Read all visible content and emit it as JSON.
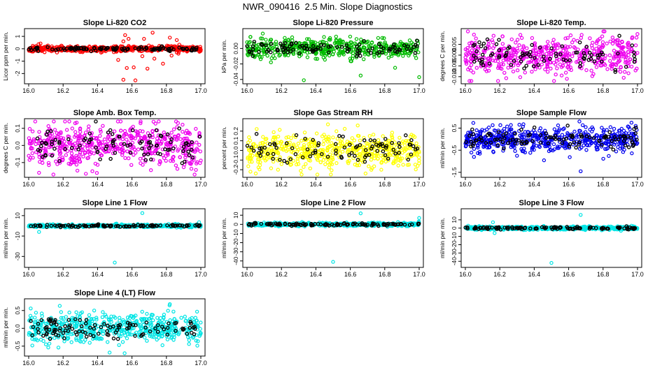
{
  "page_title": "NWR_090416  2.5 Min. Slope Diagnostics",
  "chart_data": [
    {
      "type": "scatter",
      "title": "Slope Li-820 CO2",
      "ylabel": "Licor ppm per min.",
      "xlim": [
        16.0,
        17.0
      ],
      "xticks": [
        "16.0",
        "16.2",
        "16.4",
        "16.6",
        "16.8",
        "17.0"
      ],
      "ylim": [
        -2.6,
        1.4
      ],
      "yticks": [
        -2,
        -1,
        0,
        1
      ],
      "ytick_labels": [
        "-2",
        "-1",
        "0",
        "1"
      ],
      "color": "#ff0000",
      "seed": 11,
      "n_primary": 520,
      "n_black": 110,
      "spread": 0.12,
      "outliers": [
        [
          16.55,
          -2.5
        ],
        [
          16.62,
          -2.55
        ],
        [
          16.57,
          -1.55
        ],
        [
          16.61,
          -1.5
        ],
        [
          16.69,
          -1.6
        ],
        [
          16.78,
          -1.2
        ],
        [
          16.73,
          -0.8
        ],
        [
          16.83,
          -0.55
        ],
        [
          16.87,
          -0.4
        ],
        [
          16.66,
          -0.6
        ],
        [
          16.52,
          -0.9
        ],
        [
          16.56,
          1.1
        ],
        [
          16.58,
          0.8
        ],
        [
          16.55,
          0.6
        ],
        [
          16.67,
          0.8
        ],
        [
          16.72,
          1.3
        ],
        [
          16.82,
          0.9
        ],
        [
          16.86,
          0.7
        ],
        [
          16.86,
          -0.3
        ]
      ]
    },
    {
      "type": "scatter",
      "title": "Slope Li-820 Pressure",
      "ylabel": "kPa per min.",
      "xlim": [
        16.0,
        17.0
      ],
      "xticks": [
        "16.0",
        "16.2",
        "16.4",
        "16.6",
        "16.8",
        "17.0"
      ],
      "ylim": [
        -0.042,
        0.022
      ],
      "yticks": [
        -0.04,
        -0.02,
        0.0
      ],
      "ytick_labels": [
        "-0.04",
        "-0.02",
        "0.00"
      ],
      "color": "#00bb00",
      "seed": 22,
      "n_primary": 480,
      "n_black": 100,
      "spread": 0.006,
      "outliers": [
        [
          16.33,
          -0.041
        ],
        [
          16.66,
          -0.035
        ],
        [
          17.0,
          -0.037
        ],
        [
          16.86,
          -0.025
        ],
        [
          16.02,
          0.015
        ],
        [
          16.08,
          0.013
        ]
      ]
    },
    {
      "type": "scatter",
      "title": "Slope Li-820 Temp.",
      "ylabel": "degrees C per min.",
      "xlim": [
        16.0,
        17.0
      ],
      "xticks": [
        "16.0",
        "16.2",
        "16.4",
        "16.6",
        "16.8",
        "17.0"
      ],
      "ylim": [
        -0.012,
        0.011
      ],
      "yticks": [
        -0.01,
        -0.005,
        0.0,
        0.005
      ],
      "ytick_labels": [
        "-0.010",
        "-0.005",
        "0.000",
        "0.005"
      ],
      "color": "#ee00ee",
      "seed": 33,
      "n_primary": 520,
      "n_black": 90,
      "spread": 0.0042,
      "outliers": [
        [
          16.05,
          0.0095
        ],
        [
          16.59,
          -0.011
        ],
        [
          16.92,
          -0.0105
        ]
      ]
    },
    {
      "type": "scatter",
      "title": "Slope Amb. Box Temp.",
      "ylabel": "degrees C per min.",
      "xlim": [
        16.0,
        17.0
      ],
      "xticks": [
        "16.0",
        "16.2",
        "16.4",
        "16.6",
        "16.8",
        "17.0"
      ],
      "ylim": [
        -0.17,
        0.14
      ],
      "yticks": [
        -0.1,
        0.0,
        0.1
      ],
      "ytick_labels": [
        "-0.1",
        "0.0",
        "0.1"
      ],
      "color": "#ee00ee",
      "seed": 44,
      "n_primary": 540,
      "n_black": 95,
      "spread": 0.065,
      "outliers": [
        [
          16.27,
          0.13
        ],
        [
          16.06,
          -0.16
        ]
      ]
    },
    {
      "type": "scatter",
      "title": "Slope Gas Stream RH",
      "ylabel": "percent per min.",
      "xlim": [
        16.0,
        17.0
      ],
      "xticks": [
        "16.0",
        "16.2",
        "16.4",
        "16.6",
        "16.8",
        "17.0"
      ],
      "ylim": [
        -0.25,
        0.3
      ],
      "yticks": [
        -0.2,
        -0.1,
        0.0,
        0.1,
        0.2
      ],
      "ytick_labels": [
        "-0.2",
        "-0.1",
        "0.0",
        "0.1",
        "0.2"
      ],
      "color": "#ffff00",
      "seed": 55,
      "n_primary": 540,
      "n_black": 90,
      "spread": 0.09,
      "outliers": [
        [
          16.47,
          0.27
        ],
        [
          16.02,
          -0.22
        ],
        [
          16.18,
          -0.2
        ],
        [
          16.78,
          -0.2
        ]
      ]
    },
    {
      "type": "scatter",
      "title": "Slope Sample Flow",
      "ylabel": "ml/min per min.",
      "xlim": [
        16.0,
        17.0
      ],
      "xticks": [
        "16.0",
        "16.2",
        "16.4",
        "16.6",
        "16.8",
        "17.0"
      ],
      "ylim": [
        -1.6,
        0.8
      ],
      "yticks": [
        -1.5,
        -0.5,
        0.5
      ],
      "ytick_labels": [
        "-1.5",
        "-0.5",
        "0.5"
      ],
      "color": "#0000ee",
      "seed": 66,
      "n_primary": 540,
      "n_black": 110,
      "spread": 0.28,
      "outliers": [
        [
          16.67,
          -1.45
        ],
        [
          16.05,
          -0.8
        ],
        [
          16.3,
          -0.75
        ]
      ]
    },
    {
      "type": "scatter",
      "title": "Slope Line 1 Flow",
      "ylabel": "ml/min per min.",
      "xlim": [
        16.0,
        17.0
      ],
      "xticks": [
        "16.0",
        "16.2",
        "16.4",
        "16.6",
        "16.8",
        "17.0"
      ],
      "ylim": [
        -38,
        14
      ],
      "yticks": [
        -30,
        -10,
        10
      ],
      "ytick_labels": [
        "-30",
        "-10",
        "10"
      ],
      "color": "#00e5e5",
      "seed": 77,
      "n_primary": 520,
      "n_black": 110,
      "spread": 0.7,
      "outliers": [
        [
          16.5,
          -36
        ],
        [
          16.66,
          12.5
        ],
        [
          16.06,
          -6
        ],
        [
          16.99,
          3.5
        ]
      ]
    },
    {
      "type": "scatter",
      "title": "Slope Line 2 Flow",
      "ylabel": "ml/min per min.",
      "xlim": [
        16.0,
        17.0
      ],
      "xticks": [
        "16.0",
        "16.2",
        "16.4",
        "16.6",
        "16.8",
        "17.0"
      ],
      "ylim": [
        -44,
        14
      ],
      "yticks": [
        -40,
        -30,
        -20,
        -10,
        0,
        10
      ],
      "ytick_labels": [
        "-40",
        "-30",
        "-20",
        "-10",
        "0",
        "10"
      ],
      "color": "#00e5e5",
      "seed": 88,
      "n_primary": 520,
      "n_black": 110,
      "spread": 0.9,
      "outliers": [
        [
          16.5,
          -41
        ],
        [
          16.66,
          12
        ],
        [
          17.0,
          7
        ]
      ]
    },
    {
      "type": "scatter",
      "title": "Slope Line 3 Flow",
      "ylabel": "ml/min per min.",
      "xlim": [
        16.0,
        17.0
      ],
      "xticks": [
        "16.0",
        "16.2",
        "16.4",
        "16.6",
        "16.8",
        "17.0"
      ],
      "ylim": [
        -44,
        20
      ],
      "yticks": [
        -40,
        -30,
        -20,
        -10,
        0,
        10
      ],
      "ytick_labels": [
        "-40",
        "-30",
        "-20",
        "-10",
        "0",
        "10"
      ],
      "color": "#00e5e5",
      "seed": 99,
      "n_primary": 520,
      "n_black": 110,
      "spread": 1.0,
      "outliers": [
        [
          16.5,
          -42
        ],
        [
          16.67,
          16
        ],
        [
          16.17,
          -6
        ],
        [
          16.16,
          7
        ]
      ]
    },
    {
      "type": "scatter",
      "title": "Slope Line 4 (LT) Flow",
      "ylabel": "ml/min per min.",
      "xlim": [
        16.0,
        17.0
      ],
      "xticks": [
        "16.0",
        "16.2",
        "16.4",
        "16.6",
        "16.8",
        "17.0"
      ],
      "ylim": [
        -0.7,
        0.75
      ],
      "yticks": [
        -0.5,
        0.0,
        0.5
      ],
      "ytick_labels": [
        "-0.5",
        "0.0",
        "0.5"
      ],
      "color": "#00e5e5",
      "seed": 111,
      "n_primary": 540,
      "n_black": 110,
      "spread": 0.2,
      "outliers": [
        [
          16.82,
          0.68
        ],
        [
          16.47,
          -0.68
        ],
        [
          16.1,
          -0.45
        ]
      ]
    }
  ]
}
